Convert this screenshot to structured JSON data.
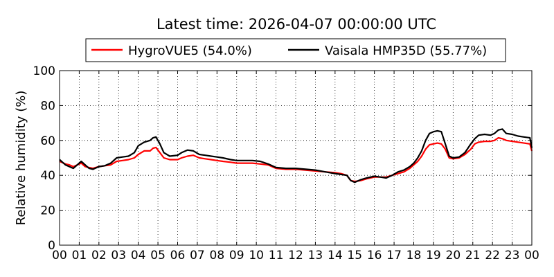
{
  "chart_data": {
    "type": "line",
    "title": "Latest time: 2026-04-07 00:00:00 UTC",
    "xlabel": "",
    "ylabel": "Relative humidity (%)",
    "xlim": [
      0,
      24
    ],
    "ylim": [
      0,
      100
    ],
    "yticks": [
      0,
      20,
      40,
      60,
      80,
      100
    ],
    "xtick_labels": [
      "00",
      "01",
      "02",
      "03",
      "04",
      "05",
      "06",
      "07",
      "08",
      "09",
      "10",
      "11",
      "12",
      "13",
      "14",
      "15",
      "16",
      "17",
      "18",
      "19",
      "20",
      "21",
      "22",
      "23",
      "00"
    ],
    "grid": true,
    "legend_position": "top-center",
    "series": [
      {
        "name": "HygroVUE5 (54.0%)",
        "color": "#ff0000",
        "x": [
          0,
          0.3,
          0.5,
          0.7,
          0.9,
          1.1,
          1.3,
          1.5,
          1.7,
          2.0,
          2.3,
          2.6,
          2.9,
          3.2,
          3.5,
          3.8,
          4.0,
          4.3,
          4.6,
          4.75,
          4.9,
          5.1,
          5.3,
          5.6,
          6.0,
          6.2,
          6.5,
          6.8,
          7.1,
          7.4,
          7.7,
          8.0,
          8.3,
          8.7,
          9.0,
          9.4,
          9.8,
          10.2,
          10.6,
          11.0,
          11.5,
          12.0,
          12.5,
          13.0,
          13.5,
          14.0,
          14.3,
          14.6,
          14.8,
          15.0,
          15.3,
          15.6,
          16.0,
          16.3,
          16.6,
          16.9,
          17.2,
          17.5,
          17.8,
          18.0,
          18.2,
          18.4,
          18.6,
          18.8,
          19.0,
          19.2,
          19.4,
          19.6,
          19.8,
          20.0,
          20.3,
          20.6,
          20.9,
          21.1,
          21.3,
          21.6,
          21.9,
          22.1,
          22.3,
          22.5,
          22.7,
          23.0,
          23.3,
          23.6,
          23.9,
          24.0
        ],
        "values": [
          48,
          46.5,
          46,
          45,
          46,
          47,
          45,
          44.5,
          44,
          45,
          45.5,
          46,
          48,
          48.5,
          49,
          50,
          52,
          54,
          54,
          55.5,
          56,
          53,
          50,
          49,
          49,
          50,
          51,
          51.5,
          50,
          49.5,
          49,
          48.5,
          48,
          47.5,
          47,
          47,
          47,
          46.5,
          46,
          44,
          43.5,
          43.5,
          43,
          42.5,
          42,
          41.5,
          41,
          40,
          37,
          36.5,
          37,
          38,
          39,
          39,
          39,
          40,
          41,
          42,
          44,
          46,
          48,
          51,
          55,
          57.5,
          58,
          58.5,
          58,
          55,
          50,
          49.5,
          50,
          52,
          55,
          58,
          59,
          59.5,
          59.5,
          60,
          61.5,
          61,
          60,
          59.5,
          59,
          58.5,
          58,
          54
        ]
      },
      {
        "name": "Vaisala HMP35D (55.77%)",
        "color": "#000000",
        "x": [
          0,
          0.3,
          0.5,
          0.7,
          0.9,
          1.1,
          1.3,
          1.5,
          1.7,
          2.0,
          2.3,
          2.6,
          2.9,
          3.2,
          3.5,
          3.8,
          4.0,
          4.3,
          4.6,
          4.75,
          4.9,
          5.1,
          5.3,
          5.6,
          6.0,
          6.2,
          6.5,
          6.8,
          7.1,
          7.4,
          7.7,
          8.0,
          8.3,
          8.7,
          9.0,
          9.4,
          9.8,
          10.2,
          10.6,
          11.0,
          11.5,
          12.0,
          12.5,
          13.0,
          13.5,
          14.0,
          14.3,
          14.6,
          14.8,
          15.0,
          15.3,
          15.6,
          16.0,
          16.3,
          16.6,
          16.9,
          17.2,
          17.5,
          17.8,
          18.0,
          18.2,
          18.4,
          18.6,
          18.8,
          19.0,
          19.2,
          19.4,
          19.6,
          19.8,
          20.0,
          20.3,
          20.6,
          20.9,
          21.1,
          21.3,
          21.6,
          21.9,
          22.1,
          22.3,
          22.5,
          22.7,
          23.0,
          23.3,
          23.6,
          23.9,
          24.0
        ],
        "values": [
          49,
          46,
          45,
          44,
          46,
          48,
          46,
          44,
          43.5,
          45,
          45.5,
          47,
          50,
          50.5,
          51,
          53,
          57,
          59,
          60,
          61.5,
          62,
          58,
          53,
          51,
          51.5,
          53,
          54.5,
          54,
          52,
          51.5,
          51,
          50.5,
          50,
          49,
          48.5,
          48.5,
          48.5,
          48,
          46.5,
          44.5,
          44,
          44,
          43.5,
          43,
          42,
          41,
          40.5,
          40,
          37,
          36,
          37.5,
          38.5,
          39.5,
          39,
          38.5,
          40,
          42,
          43,
          45,
          47,
          50,
          54,
          60,
          64,
          65,
          65.5,
          65,
          58,
          51,
          50,
          50.5,
          53,
          58,
          61,
          63,
          63.5,
          63,
          64,
          66,
          66.5,
          64,
          63.5,
          62.5,
          62,
          61.5,
          55.77
        ]
      }
    ]
  }
}
